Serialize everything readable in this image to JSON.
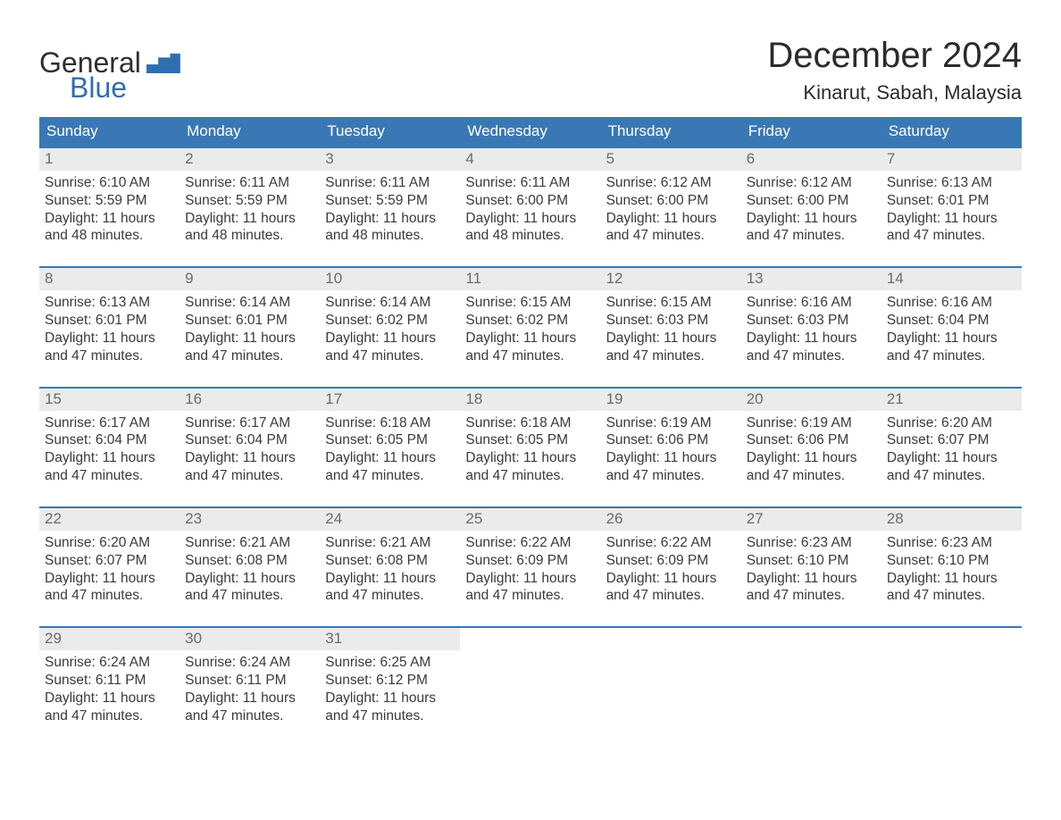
{
  "brand": {
    "line1": "General",
    "line2": "Blue",
    "general_color": "#2f2f2f",
    "blue_color": "#2f6fb0",
    "flag_color": "#2f6fb0"
  },
  "title": {
    "month": "December 2024",
    "location": "Kinarut, Sabah, Malaysia",
    "title_fontsize": 40,
    "location_fontsize": 22,
    "text_color": "#2b2b2b"
  },
  "calendar": {
    "type": "table",
    "header_bg": "#3a78b5",
    "header_text_color": "#ffffff",
    "daynum_bg": "#ebebeb",
    "daynum_color": "#6b6b6b",
    "row_border_color": "#3a78b5",
    "body_text_color": "#3a3a3a",
    "background_color": "#ffffff",
    "weekday_fontsize": 17,
    "daynum_fontsize": 17,
    "body_fontsize": 15.5,
    "weekdays": [
      "Sunday",
      "Monday",
      "Tuesday",
      "Wednesday",
      "Thursday",
      "Friday",
      "Saturday"
    ],
    "weeks": [
      [
        {
          "n": "1",
          "sunrise": "Sunrise: 6:10 AM",
          "sunset": "Sunset: 5:59 PM",
          "day1": "Daylight: 11 hours",
          "day2": "and 48 minutes."
        },
        {
          "n": "2",
          "sunrise": "Sunrise: 6:11 AM",
          "sunset": "Sunset: 5:59 PM",
          "day1": "Daylight: 11 hours",
          "day2": "and 48 minutes."
        },
        {
          "n": "3",
          "sunrise": "Sunrise: 6:11 AM",
          "sunset": "Sunset: 5:59 PM",
          "day1": "Daylight: 11 hours",
          "day2": "and 48 minutes."
        },
        {
          "n": "4",
          "sunrise": "Sunrise: 6:11 AM",
          "sunset": "Sunset: 6:00 PM",
          "day1": "Daylight: 11 hours",
          "day2": "and 48 minutes."
        },
        {
          "n": "5",
          "sunrise": "Sunrise: 6:12 AM",
          "sunset": "Sunset: 6:00 PM",
          "day1": "Daylight: 11 hours",
          "day2": "and 47 minutes."
        },
        {
          "n": "6",
          "sunrise": "Sunrise: 6:12 AM",
          "sunset": "Sunset: 6:00 PM",
          "day1": "Daylight: 11 hours",
          "day2": "and 47 minutes."
        },
        {
          "n": "7",
          "sunrise": "Sunrise: 6:13 AM",
          "sunset": "Sunset: 6:01 PM",
          "day1": "Daylight: 11 hours",
          "day2": "and 47 minutes."
        }
      ],
      [
        {
          "n": "8",
          "sunrise": "Sunrise: 6:13 AM",
          "sunset": "Sunset: 6:01 PM",
          "day1": "Daylight: 11 hours",
          "day2": "and 47 minutes."
        },
        {
          "n": "9",
          "sunrise": "Sunrise: 6:14 AM",
          "sunset": "Sunset: 6:01 PM",
          "day1": "Daylight: 11 hours",
          "day2": "and 47 minutes."
        },
        {
          "n": "10",
          "sunrise": "Sunrise: 6:14 AM",
          "sunset": "Sunset: 6:02 PM",
          "day1": "Daylight: 11 hours",
          "day2": "and 47 minutes."
        },
        {
          "n": "11",
          "sunrise": "Sunrise: 6:15 AM",
          "sunset": "Sunset: 6:02 PM",
          "day1": "Daylight: 11 hours",
          "day2": "and 47 minutes."
        },
        {
          "n": "12",
          "sunrise": "Sunrise: 6:15 AM",
          "sunset": "Sunset: 6:03 PM",
          "day1": "Daylight: 11 hours",
          "day2": "and 47 minutes."
        },
        {
          "n": "13",
          "sunrise": "Sunrise: 6:16 AM",
          "sunset": "Sunset: 6:03 PM",
          "day1": "Daylight: 11 hours",
          "day2": "and 47 minutes."
        },
        {
          "n": "14",
          "sunrise": "Sunrise: 6:16 AM",
          "sunset": "Sunset: 6:04 PM",
          "day1": "Daylight: 11 hours",
          "day2": "and 47 minutes."
        }
      ],
      [
        {
          "n": "15",
          "sunrise": "Sunrise: 6:17 AM",
          "sunset": "Sunset: 6:04 PM",
          "day1": "Daylight: 11 hours",
          "day2": "and 47 minutes."
        },
        {
          "n": "16",
          "sunrise": "Sunrise: 6:17 AM",
          "sunset": "Sunset: 6:04 PM",
          "day1": "Daylight: 11 hours",
          "day2": "and 47 minutes."
        },
        {
          "n": "17",
          "sunrise": "Sunrise: 6:18 AM",
          "sunset": "Sunset: 6:05 PM",
          "day1": "Daylight: 11 hours",
          "day2": "and 47 minutes."
        },
        {
          "n": "18",
          "sunrise": "Sunrise: 6:18 AM",
          "sunset": "Sunset: 6:05 PM",
          "day1": "Daylight: 11 hours",
          "day2": "and 47 minutes."
        },
        {
          "n": "19",
          "sunrise": "Sunrise: 6:19 AM",
          "sunset": "Sunset: 6:06 PM",
          "day1": "Daylight: 11 hours",
          "day2": "and 47 minutes."
        },
        {
          "n": "20",
          "sunrise": "Sunrise: 6:19 AM",
          "sunset": "Sunset: 6:06 PM",
          "day1": "Daylight: 11 hours",
          "day2": "and 47 minutes."
        },
        {
          "n": "21",
          "sunrise": "Sunrise: 6:20 AM",
          "sunset": "Sunset: 6:07 PM",
          "day1": "Daylight: 11 hours",
          "day2": "and 47 minutes."
        }
      ],
      [
        {
          "n": "22",
          "sunrise": "Sunrise: 6:20 AM",
          "sunset": "Sunset: 6:07 PM",
          "day1": "Daylight: 11 hours",
          "day2": "and 47 minutes."
        },
        {
          "n": "23",
          "sunrise": "Sunrise: 6:21 AM",
          "sunset": "Sunset: 6:08 PM",
          "day1": "Daylight: 11 hours",
          "day2": "and 47 minutes."
        },
        {
          "n": "24",
          "sunrise": "Sunrise: 6:21 AM",
          "sunset": "Sunset: 6:08 PM",
          "day1": "Daylight: 11 hours",
          "day2": "and 47 minutes."
        },
        {
          "n": "25",
          "sunrise": "Sunrise: 6:22 AM",
          "sunset": "Sunset: 6:09 PM",
          "day1": "Daylight: 11 hours",
          "day2": "and 47 minutes."
        },
        {
          "n": "26",
          "sunrise": "Sunrise: 6:22 AM",
          "sunset": "Sunset: 6:09 PM",
          "day1": "Daylight: 11 hours",
          "day2": "and 47 minutes."
        },
        {
          "n": "27",
          "sunrise": "Sunrise: 6:23 AM",
          "sunset": "Sunset: 6:10 PM",
          "day1": "Daylight: 11 hours",
          "day2": "and 47 minutes."
        },
        {
          "n": "28",
          "sunrise": "Sunrise: 6:23 AM",
          "sunset": "Sunset: 6:10 PM",
          "day1": "Daylight: 11 hours",
          "day2": "and 47 minutes."
        }
      ],
      [
        {
          "n": "29",
          "sunrise": "Sunrise: 6:24 AM",
          "sunset": "Sunset: 6:11 PM",
          "day1": "Daylight: 11 hours",
          "day2": "and 47 minutes."
        },
        {
          "n": "30",
          "sunrise": "Sunrise: 6:24 AM",
          "sunset": "Sunset: 6:11 PM",
          "day1": "Daylight: 11 hours",
          "day2": "and 47 minutes."
        },
        {
          "n": "31",
          "sunrise": "Sunrise: 6:25 AM",
          "sunset": "Sunset: 6:12 PM",
          "day1": "Daylight: 11 hours",
          "day2": "and 47 minutes."
        },
        null,
        null,
        null,
        null
      ]
    ]
  }
}
